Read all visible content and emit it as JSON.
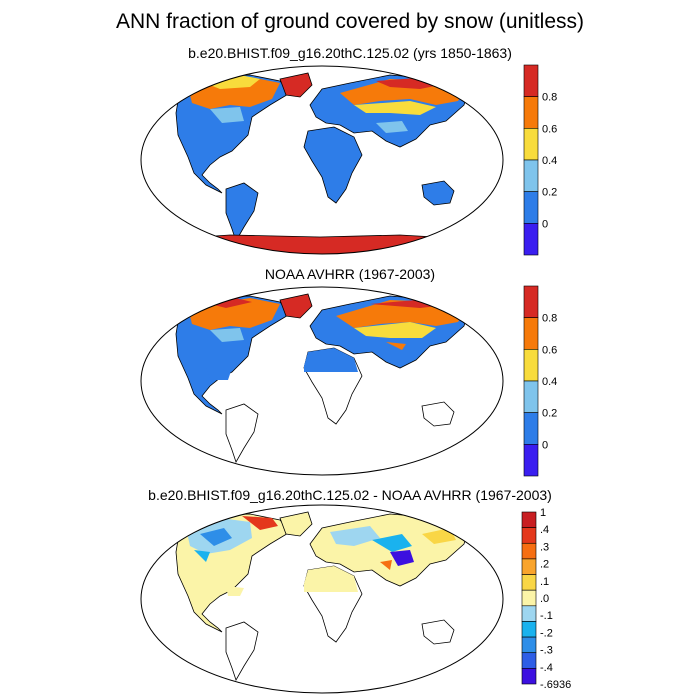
{
  "figure": {
    "title": "ANN fraction of ground covered by snow (unitless)"
  },
  "panels": [
    {
      "title": "b.e20.BHIST.f09_g16.20thC.125.02 (yrs 1850-1863)",
      "colorbar": {
        "colors": [
          "#3a1ef0",
          "#2e7de8",
          "#7fc4ec",
          "#f8dc3c",
          "#f67a0a",
          "#d62a24"
        ],
        "tick_labels": [
          "0",
          "0.2",
          "0.4",
          "0.6",
          "0.8"
        ]
      }
    },
    {
      "title": "NOAA AVHRR (1967-2003)",
      "colorbar": {
        "colors": [
          "#3a1ef0",
          "#2e7de8",
          "#7fc4ec",
          "#f8dc3c",
          "#f67a0a",
          "#d62a24"
        ],
        "tick_labels": [
          "0",
          "0.2",
          "0.4",
          "0.6",
          "0.8"
        ]
      }
    },
    {
      "title": "b.e20.BHIST.f09_g16.20thC.125.02 - NOAA AVHRR (1967-2003)",
      "colorbar": {
        "colors": [
          "#3c10e0",
          "#2e5ee6",
          "#2e8ee8",
          "#1ab2ee",
          "#9ed6f0",
          "#fbf4a8",
          "#f9d646",
          "#f9a42c",
          "#f66e12",
          "#e4381c",
          "#c81e22"
        ],
        "tick_labels": [
          "-.6936",
          "-.4",
          "-.3",
          "-.2",
          "-.1",
          ".0",
          ".1",
          ".2",
          ".3",
          ".4",
          "1"
        ]
      }
    }
  ],
  "colors": {
    "land_fill": "#2b7ae6",
    "ocean": "#ffffff",
    "outline": "#000000"
  }
}
